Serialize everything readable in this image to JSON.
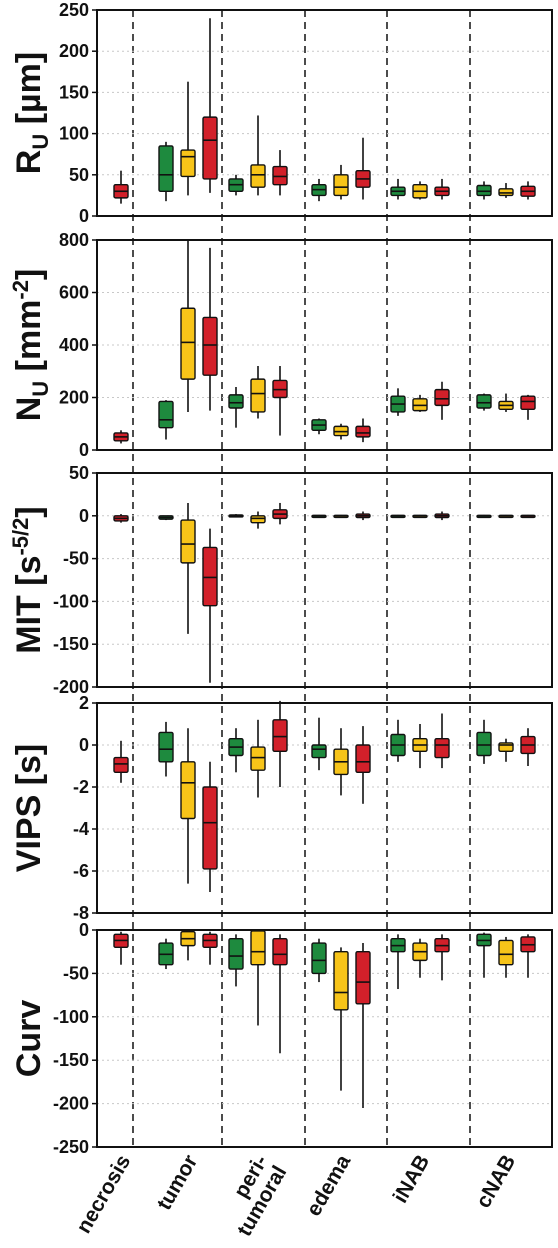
{
  "chart_data": [
    {
      "type": "box",
      "ylabel": "RU [µm]",
      "ylabel_main": "R",
      "ylabel_sub": "U",
      "ylabel_unit": " [µm]",
      "ylim": [
        0,
        250
      ],
      "yticks": [
        "0",
        "50",
        "100",
        "150",
        "200",
        "250"
      ],
      "yticks_values": [
        0,
        50,
        100,
        150,
        200,
        250
      ],
      "boxes": [
        {
          "group": "necrosis",
          "color": "red",
          "min": 15,
          "q1": 22,
          "median": 30,
          "q3": 38,
          "max": 55
        },
        {
          "group": "tumor",
          "color": "green",
          "min": 18,
          "q1": 30,
          "median": 50,
          "q3": 85,
          "max": 90
        },
        {
          "group": "tumor",
          "color": "yellow",
          "min": 25,
          "q1": 48,
          "median": 72,
          "q3": 80,
          "max": 163
        },
        {
          "group": "tumor",
          "color": "red",
          "min": 28,
          "q1": 45,
          "median": 92,
          "q3": 120,
          "max": 240
        },
        {
          "group": "peri-tumoral",
          "color": "green",
          "min": 25,
          "q1": 30,
          "median": 38,
          "q3": 45,
          "max": 50
        },
        {
          "group": "peri-tumoral",
          "color": "yellow",
          "min": 25,
          "q1": 35,
          "median": 50,
          "q3": 62,
          "max": 122
        },
        {
          "group": "peri-tumoral",
          "color": "red",
          "min": 25,
          "q1": 38,
          "median": 48,
          "q3": 60,
          "max": 80
        },
        {
          "group": "edema",
          "color": "green",
          "min": 18,
          "q1": 25,
          "median": 32,
          "q3": 38,
          "max": 45
        },
        {
          "group": "edema",
          "color": "yellow",
          "min": 20,
          "q1": 25,
          "median": 35,
          "q3": 50,
          "max": 62
        },
        {
          "group": "edema",
          "color": "red",
          "min": 20,
          "q1": 35,
          "median": 45,
          "q3": 55,
          "max": 95
        },
        {
          "group": "iNAB",
          "color": "green",
          "min": 20,
          "q1": 25,
          "median": 30,
          "q3": 35,
          "max": 45
        },
        {
          "group": "iNAB",
          "color": "yellow",
          "min": 20,
          "q1": 22,
          "median": 30,
          "q3": 38,
          "max": 42
        },
        {
          "group": "iNAB",
          "color": "red",
          "min": 20,
          "q1": 25,
          "median": 30,
          "q3": 35,
          "max": 45
        },
        {
          "group": "cNAB",
          "color": "green",
          "min": 20,
          "q1": 25,
          "median": 30,
          "q3": 37,
          "max": 42
        },
        {
          "group": "cNAB",
          "color": "yellow",
          "min": 22,
          "q1": 25,
          "median": 28,
          "q3": 33,
          "max": 40
        },
        {
          "group": "cNAB",
          "color": "red",
          "min": 20,
          "q1": 24,
          "median": 30,
          "q3": 36,
          "max": 42
        }
      ]
    },
    {
      "type": "box",
      "ylabel": "NU [mm-2]",
      "ylabel_main": "N",
      "ylabel_sub": "U",
      "ylabel_unit": " [mm",
      "ylabel_sup": "-2",
      "ylabel_end": "]",
      "ylim": [
        0,
        800
      ],
      "yticks": [
        "0",
        "200",
        "400",
        "600",
        "800"
      ],
      "yticks_values": [
        0,
        200,
        400,
        600,
        800
      ],
      "boxes": [
        {
          "group": "necrosis",
          "color": "red",
          "min": 25,
          "q1": 35,
          "median": 50,
          "q3": 65,
          "max": 75
        },
        {
          "group": "tumor",
          "color": "green",
          "min": 40,
          "q1": 85,
          "median": 115,
          "q3": 185,
          "max": 190
        },
        {
          "group": "tumor",
          "color": "yellow",
          "min": 145,
          "q1": 270,
          "median": 410,
          "q3": 540,
          "max": 800
        },
        {
          "group": "tumor",
          "color": "red",
          "min": 150,
          "q1": 285,
          "median": 400,
          "q3": 505,
          "max": 770
        },
        {
          "group": "peri-tumoral",
          "color": "green",
          "min": 85,
          "q1": 160,
          "median": 180,
          "q3": 210,
          "max": 240
        },
        {
          "group": "peri-tumoral",
          "color": "yellow",
          "min": 120,
          "q1": 145,
          "median": 215,
          "q3": 270,
          "max": 320
        },
        {
          "group": "peri-tumoral",
          "color": "red",
          "min": 55,
          "q1": 200,
          "median": 230,
          "q3": 265,
          "max": 320
        },
        {
          "group": "edema",
          "color": "green",
          "min": 60,
          "q1": 75,
          "median": 95,
          "q3": 115,
          "max": 120
        },
        {
          "group": "edema",
          "color": "yellow",
          "min": 40,
          "q1": 55,
          "median": 70,
          "q3": 90,
          "max": 100
        },
        {
          "group": "edema",
          "color": "red",
          "min": 30,
          "q1": 50,
          "median": 65,
          "q3": 90,
          "max": 120
        },
        {
          "group": "iNAB",
          "color": "green",
          "min": 130,
          "q1": 145,
          "median": 175,
          "q3": 205,
          "max": 235
        },
        {
          "group": "iNAB",
          "color": "yellow",
          "min": 145,
          "q1": 150,
          "median": 170,
          "q3": 195,
          "max": 210
        },
        {
          "group": "iNAB",
          "color": "red",
          "min": 115,
          "q1": 170,
          "median": 195,
          "q3": 230,
          "max": 260
        },
        {
          "group": "cNAB",
          "color": "green",
          "min": 150,
          "q1": 160,
          "median": 180,
          "q3": 210,
          "max": 215
        },
        {
          "group": "cNAB",
          "color": "yellow",
          "min": 145,
          "q1": 155,
          "median": 170,
          "q3": 185,
          "max": 215
        },
        {
          "group": "cNAB",
          "color": "red",
          "min": 115,
          "q1": 155,
          "median": 185,
          "q3": 205,
          "max": 210
        }
      ]
    },
    {
      "type": "box",
      "ylabel": "MIT [s-5/2]",
      "ylabel_main": "MIT  [s",
      "ylabel_sup": "-5/2",
      "ylabel_end": "]",
      "ylim": [
        -200,
        50
      ],
      "yticks": [
        "-200",
        "-150",
        "-100",
        "-50",
        "0",
        "50"
      ],
      "yticks_values": [
        -200,
        -150,
        -100,
        -50,
        0,
        50
      ],
      "boxes": [
        {
          "group": "necrosis",
          "color": "red",
          "min": -8,
          "q1": -6,
          "median": -3,
          "q3": 0,
          "max": 2
        },
        {
          "group": "tumor",
          "color": "green",
          "min": -5,
          "q1": -4,
          "median": -2,
          "q3": 0,
          "max": 0
        },
        {
          "group": "tumor",
          "color": "yellow",
          "min": -138,
          "q1": -55,
          "median": -33,
          "q3": -5,
          "max": 15
        },
        {
          "group": "tumor",
          "color": "red",
          "min": -195,
          "q1": -105,
          "median": -72,
          "q3": -37,
          "max": -15
        },
        {
          "group": "peri-tumoral",
          "color": "green",
          "min": -2,
          "q1": -1,
          "median": 0,
          "q3": 1,
          "max": 2
        },
        {
          "group": "peri-tumoral",
          "color": "yellow",
          "min": -15,
          "q1": -8,
          "median": -3,
          "q3": 0,
          "max": 5
        },
        {
          "group": "peri-tumoral",
          "color": "red",
          "min": -10,
          "q1": -3,
          "median": 2,
          "q3": 7,
          "max": 15
        },
        {
          "group": "edema",
          "color": "green",
          "min": -1,
          "q1": -0.5,
          "median": 0,
          "q3": 0.5,
          "max": 1
        },
        {
          "group": "edema",
          "color": "yellow",
          "min": -1,
          "q1": -0.5,
          "median": 0,
          "q3": 0.5,
          "max": 1
        },
        {
          "group": "edema",
          "color": "red",
          "min": -5,
          "q1": -2,
          "median": 0,
          "q3": 2,
          "max": 5
        },
        {
          "group": "iNAB",
          "color": "green",
          "min": -1,
          "q1": -0.5,
          "median": 0,
          "q3": 0.5,
          "max": 1
        },
        {
          "group": "iNAB",
          "color": "yellow",
          "min": -1,
          "q1": -0.5,
          "median": 0,
          "q3": 0.5,
          "max": 1
        },
        {
          "group": "iNAB",
          "color": "red",
          "min": -5,
          "q1": -2,
          "median": 0,
          "q3": 2,
          "max": 5
        },
        {
          "group": "cNAB",
          "color": "green",
          "min": -1,
          "q1": -0.5,
          "median": 0,
          "q3": 0.5,
          "max": 1
        },
        {
          "group": "cNAB",
          "color": "yellow",
          "min": -1,
          "q1": -0.5,
          "median": 0,
          "q3": 0.5,
          "max": 1
        },
        {
          "group": "cNAB",
          "color": "red",
          "min": -1,
          "q1": -0.5,
          "median": 0,
          "q3": 0.5,
          "max": 1
        }
      ]
    },
    {
      "type": "box",
      "ylabel": "VIPS  [s]",
      "ylabel_main": "VIPS  [s]",
      "ylim": [
        -8,
        2
      ],
      "yticks": [
        "-8",
        "-6",
        "-4",
        "-2",
        "0",
        "2"
      ],
      "yticks_values": [
        -8,
        -6,
        -4,
        -2,
        0,
        2
      ],
      "boxes": [
        {
          "group": "necrosis",
          "color": "red",
          "min": -1.8,
          "q1": -1.3,
          "median": -0.9,
          "q3": -0.6,
          "max": 0.2
        },
        {
          "group": "tumor",
          "color": "green",
          "min": -1.5,
          "q1": -0.8,
          "median": -0.2,
          "q3": 0.6,
          "max": 1.1
        },
        {
          "group": "tumor",
          "color": "yellow",
          "min": -6.6,
          "q1": -3.5,
          "median": -1.8,
          "q3": -0.8,
          "max": 0.8
        },
        {
          "group": "tumor",
          "color": "red",
          "min": -7,
          "q1": -5.9,
          "median": -3.7,
          "q3": -2,
          "max": -0.8
        },
        {
          "group": "peri-tumoral",
          "color": "green",
          "min": -1.3,
          "q1": -0.5,
          "median": -0.1,
          "q3": 0.3,
          "max": 0.8
        },
        {
          "group": "peri-tumoral",
          "color": "yellow",
          "min": -2.5,
          "q1": -1.2,
          "median": -0.6,
          "q3": -0.1,
          "max": 1.2
        },
        {
          "group": "peri-tumoral",
          "color": "red",
          "min": -2,
          "q1": -0.3,
          "median": 0.4,
          "q3": 1.2,
          "max": 2.1
        },
        {
          "group": "edema",
          "color": "green",
          "min": -1.2,
          "q1": -0.6,
          "median": -0.2,
          "q3": 0,
          "max": 1.3
        },
        {
          "group": "edema",
          "color": "yellow",
          "min": -2.4,
          "q1": -1.4,
          "median": -0.8,
          "q3": -0.2,
          "max": 0.8
        },
        {
          "group": "edema",
          "color": "red",
          "min": -2.8,
          "q1": -1.3,
          "median": -0.8,
          "q3": 0,
          "max": 0.9
        },
        {
          "group": "iNAB",
          "color": "green",
          "min": -0.8,
          "q1": -0.5,
          "median": 0,
          "q3": 0.5,
          "max": 1.2
        },
        {
          "group": "iNAB",
          "color": "yellow",
          "min": -1.1,
          "q1": -0.3,
          "median": 0,
          "q3": 0.3,
          "max": 1
        },
        {
          "group": "iNAB",
          "color": "red",
          "min": -1.1,
          "q1": -0.6,
          "median": 0,
          "q3": 0.3,
          "max": 1.5
        },
        {
          "group": "cNAB",
          "color": "green",
          "min": -0.9,
          "q1": -0.5,
          "median": 0,
          "q3": 0.6,
          "max": 1.2
        },
        {
          "group": "cNAB",
          "color": "yellow",
          "min": -0.8,
          "q1": -0.3,
          "median": 0,
          "q3": 0.1,
          "max": 0.3
        },
        {
          "group": "cNAB",
          "color": "red",
          "min": -1,
          "q1": -0.4,
          "median": 0,
          "q3": 0.4,
          "max": 0.8
        }
      ]
    },
    {
      "type": "box",
      "ylabel": "Curv",
      "ylabel_main": "Curv",
      "ylim": [
        -250,
        0
      ],
      "yticks": [
        "-250",
        "-200",
        "-150",
        "-100",
        "-50",
        "0"
      ],
      "yticks_values": [
        -250,
        -200,
        -150,
        -100,
        -50,
        0
      ],
      "boxes": [
        {
          "group": "necrosis",
          "color": "red",
          "min": -40,
          "q1": -20,
          "median": -12,
          "q3": -5,
          "max": -2
        },
        {
          "group": "tumor",
          "color": "green",
          "min": -45,
          "q1": -40,
          "median": -28,
          "q3": -15,
          "max": -10
        },
        {
          "group": "tumor",
          "color": "yellow",
          "min": -35,
          "q1": -18,
          "median": -10,
          "q3": -2,
          "max": -1
        },
        {
          "group": "tumor",
          "color": "red",
          "min": -40,
          "q1": -20,
          "median": -12,
          "q3": -5,
          "max": -2
        },
        {
          "group": "peri-tumoral",
          "color": "green",
          "min": -65,
          "q1": -45,
          "median": -30,
          "q3": -10,
          "max": -5
        },
        {
          "group": "peri-tumoral",
          "color": "yellow",
          "min": -110,
          "q1": -40,
          "median": -25,
          "q3": -1,
          "max": -1
        },
        {
          "group": "peri-tumoral",
          "color": "red",
          "min": -142,
          "q1": -40,
          "median": -28,
          "q3": -10,
          "max": -5
        },
        {
          "group": "edema",
          "color": "green",
          "min": -60,
          "q1": -50,
          "median": -35,
          "q3": -15,
          "max": -10
        },
        {
          "group": "edema",
          "color": "yellow",
          "min": -185,
          "q1": -92,
          "median": -72,
          "q3": -25,
          "max": -20
        },
        {
          "group": "edema",
          "color": "red",
          "min": -205,
          "q1": -85,
          "median": -60,
          "q3": -25,
          "max": -15
        },
        {
          "group": "iNAB",
          "color": "green",
          "min": -68,
          "q1": -25,
          "median": -18,
          "q3": -10,
          "max": -5
        },
        {
          "group": "iNAB",
          "color": "yellow",
          "min": -55,
          "q1": -35,
          "median": -25,
          "q3": -15,
          "max": -10
        },
        {
          "group": "iNAB",
          "color": "red",
          "min": -58,
          "q1": -25,
          "median": -18,
          "q3": -10,
          "max": -5
        },
        {
          "group": "cNAB",
          "color": "green",
          "min": -55,
          "q1": -18,
          "median": -12,
          "q3": -5,
          "max": -3
        },
        {
          "group": "cNAB",
          "color": "yellow",
          "min": -55,
          "q1": -40,
          "median": -28,
          "q3": -12,
          "max": -8
        },
        {
          "group": "cNAB",
          "color": "red",
          "min": -55,
          "q1": -25,
          "median": -17,
          "q3": -8,
          "max": -5
        }
      ]
    }
  ],
  "categories": [
    "necrosis",
    "tumor",
    "peri-\ntumoral",
    "edema",
    "iNAB",
    "cNAB"
  ],
  "colors": {
    "green": "#1e8a3e",
    "yellow": "#f7c419",
    "red": "#d2202a"
  }
}
